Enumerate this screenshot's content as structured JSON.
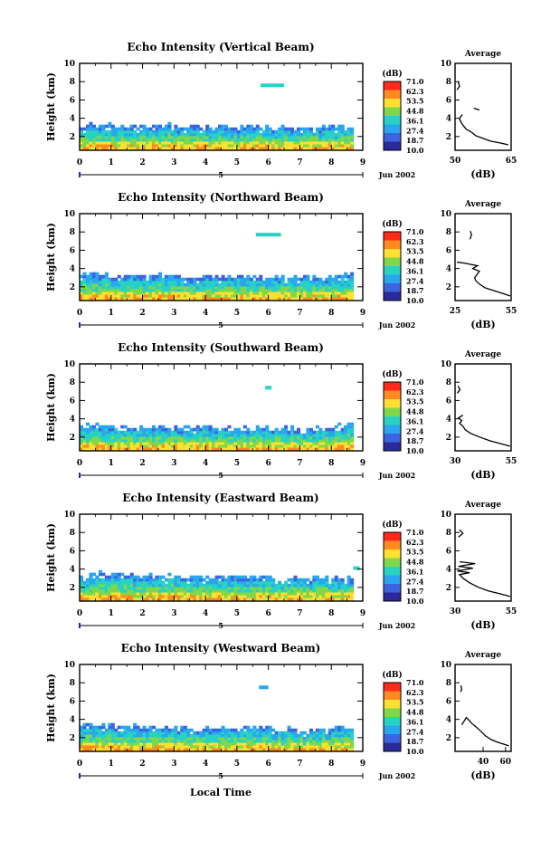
{
  "chart_data": {
    "type": "heatmap",
    "colorbar": {
      "unit": "(dB)",
      "ticks": [
        "71.0",
        "62.3",
        "53.5",
        "44.8",
        "36.1",
        "27.4",
        "18.7",
        "10.0"
      ],
      "colors": [
        "#ff2a1a",
        "#ff8a20",
        "#ffe030",
        "#7ed84a",
        "#27d2c4",
        "#2aa6ee",
        "#3b64de",
        "#2a2a9a"
      ]
    },
    "x_ticks": [
      "0",
      "1",
      "2",
      "3",
      "4",
      "5",
      "6",
      "7",
      "8",
      "9"
    ],
    "xlim": [
      0,
      9
    ],
    "y_ticks": [
      "2",
      "4",
      "6",
      "8",
      "10"
    ],
    "ylim": [
      0.5,
      10
    ],
    "ylabel": "Height (km)",
    "date_label": "5",
    "date_right": "Jun 2002",
    "xlabel": "Local Time",
    "avg_title": "Average",
    "avg_ylim": [
      0.5,
      10
    ],
    "panels": [
      {
        "title": "Echo Intensity (Vertical Beam)",
        "avg_xlabel": "(dB)",
        "avg_xlim": [
          50,
          65
        ],
        "avg_xticks": [
          "50",
          "65"
        ],
        "avg_profile": [
          [
            64.2,
            1.1
          ],
          [
            62.0,
            1.3
          ],
          [
            59.5,
            1.5
          ],
          [
            57.5,
            1.8
          ],
          [
            55.5,
            2.1
          ],
          [
            54.3,
            2.5
          ],
          [
            53.0,
            2.8
          ],
          [
            52.2,
            3.2
          ],
          [
            51.7,
            3.5
          ],
          [
            51.2,
            3.9
          ],
          [
            51.5,
            4.2
          ],
          [
            52.0,
            4.4
          ]
        ],
        "avg_extra": [
          [
            [
              55.0,
              5.1
            ],
            [
              56.5,
              4.9
            ]
          ],
          [
            [
              50.5,
              7.1
            ],
            [
              51.2,
              7.5
            ],
            [
              50.8,
              8.0
            ]
          ]
        ],
        "field_top": [
          3.1,
          3.0,
          3.2,
          3.0,
          2.9,
          3.1,
          2.8,
          2.9,
          3.0
        ],
        "patch": {
          "x": 5.75,
          "y": 7.6,
          "w": 0.75,
          "color": "#27d2c4"
        }
      },
      {
        "title": "Echo Intensity (Northward Beam)",
        "avg_xlabel": "(dB)",
        "avg_xlim": [
          25,
          55
        ],
        "avg_xticks": [
          "25",
          "55"
        ],
        "avg_profile": [
          [
            54.5,
            1.0
          ],
          [
            50.0,
            1.3
          ],
          [
            45.5,
            1.6
          ],
          [
            41.0,
            1.9
          ],
          [
            38.0,
            2.3
          ],
          [
            36.0,
            2.7
          ],
          [
            35.5,
            3.0
          ],
          [
            36.5,
            3.3
          ],
          [
            38.0,
            3.7
          ],
          [
            34.5,
            4.0
          ],
          [
            37.0,
            4.3
          ],
          [
            30.0,
            4.6
          ],
          [
            26.0,
            4.7
          ]
        ],
        "avg_extra": [
          [
            [
              33.0,
              7.2
            ],
            [
              33.8,
              7.7
            ],
            [
              33.2,
              8.1
            ]
          ]
        ],
        "field_top": [
          3.3,
          3.1,
          3.2,
          3.0,
          3.1,
          3.0,
          3.0,
          2.9,
          3.1
        ],
        "patch": {
          "x": 5.6,
          "y": 7.7,
          "w": 0.8,
          "color": "#27d2c4"
        }
      },
      {
        "title": "Echo Intensity (Southward Beam)",
        "avg_xlabel": "(dB)",
        "avg_xlim": [
          30,
          55
        ],
        "avg_xticks": [
          "30",
          "55"
        ],
        "avg_profile": [
          [
            54.5,
            1.0
          ],
          [
            50.0,
            1.3
          ],
          [
            45.5,
            1.6
          ],
          [
            41.0,
            2.0
          ],
          [
            37.0,
            2.4
          ],
          [
            34.5,
            2.8
          ],
          [
            33.5,
            3.2
          ],
          [
            32.0,
            3.5
          ],
          [
            33.0,
            3.8
          ],
          [
            31.5,
            4.1
          ],
          [
            33.5,
            4.4
          ]
        ],
        "avg_extra": [
          [
            [
              31.0,
              6.8
            ],
            [
              32.2,
              7.2
            ],
            [
              31.3,
              7.6
            ]
          ]
        ],
        "field_top": [
          3.2,
          3.0,
          3.1,
          3.0,
          2.9,
          3.0,
          2.8,
          2.9,
          3.3
        ],
        "patch": {
          "x": 5.9,
          "y": 7.4,
          "w": 0.2,
          "color": "#27d2c4"
        }
      },
      {
        "title": "Echo Intensity (Eastward Beam)",
        "avg_xlabel": "(dB)",
        "avg_xlim": [
          30,
          55
        ],
        "avg_xticks": [
          "30",
          "55"
        ],
        "avg_profile": [
          [
            54.5,
            1.0
          ],
          [
            50.0,
            1.3
          ],
          [
            45.0,
            1.6
          ],
          [
            40.5,
            2.0
          ],
          [
            36.5,
            2.5
          ],
          [
            33.5,
            3.0
          ],
          [
            32.0,
            3.4
          ],
          [
            36.5,
            3.6
          ],
          [
            31.0,
            3.8
          ],
          [
            38.0,
            4.1
          ],
          [
            31.5,
            4.3
          ],
          [
            39.0,
            4.6
          ],
          [
            32.0,
            4.8
          ]
        ],
        "avg_extra": [
          [
            [
              31.5,
              7.5
            ],
            [
              33.5,
              7.9
            ],
            [
              32.0,
              8.3
            ]
          ]
        ],
        "field_top": [
          3.4,
          3.2,
          3.2,
          3.0,
          3.0,
          3.1,
          2.9,
          2.9,
          3.0
        ],
        "patch": {
          "x": 8.7,
          "y": 4.1,
          "w": 0.2,
          "color": "#27d2c4"
        }
      },
      {
        "title": "Echo Intensity (Westward Beam)",
        "avg_xlabel": "(dB)",
        "avg_xlim": [
          15,
          65
        ],
        "avg_xticks": [
          "40",
          "60"
        ],
        "avg_profile": [
          [
            63.0,
            1.1
          ],
          [
            58.0,
            1.3
          ],
          [
            53.0,
            1.5
          ],
          [
            47.0,
            1.8
          ],
          [
            42.0,
            2.2
          ],
          [
            38.0,
            2.7
          ],
          [
            33.5,
            3.2
          ],
          [
            29.5,
            3.6
          ],
          [
            27.5,
            3.9
          ],
          [
            25.0,
            4.2
          ],
          [
            23.0,
            3.8
          ],
          [
            21.0,
            3.4
          ]
        ],
        "avg_extra": [
          [
            [
              20.0,
              7.0
            ],
            [
              21.0,
              7.3
            ],
            [
              20.2,
              7.7
            ]
          ]
        ],
        "field_top": [
          3.3,
          3.1,
          3.1,
          2.9,
          2.9,
          3.0,
          2.8,
          2.8,
          3.0
        ],
        "patch": {
          "x": 5.7,
          "y": 7.5,
          "w": 0.3,
          "color": "#2aa6ee"
        }
      }
    ]
  }
}
